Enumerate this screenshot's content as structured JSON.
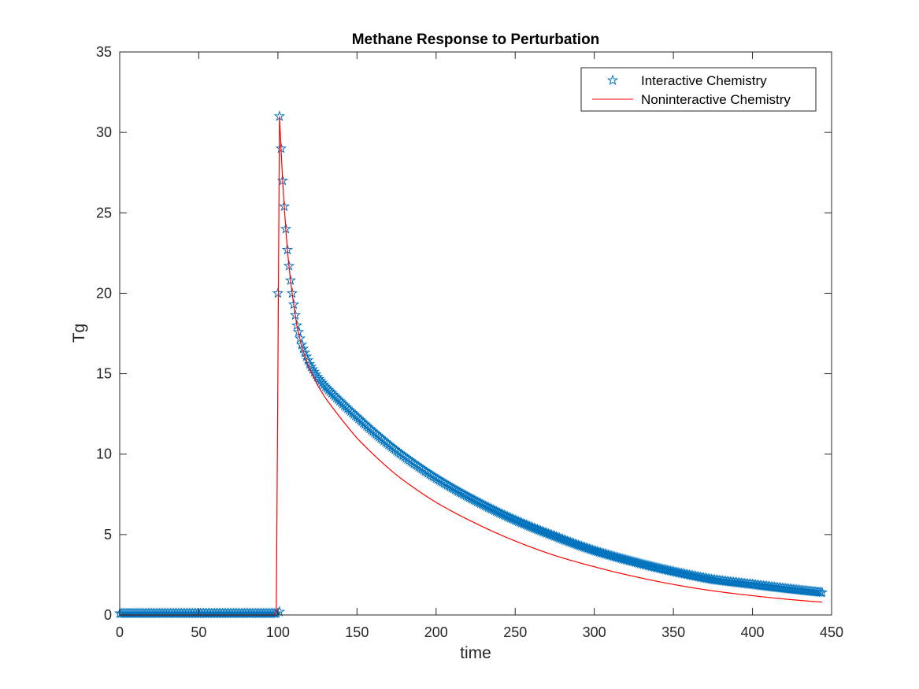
{
  "chart_data": {
    "type": "line",
    "title": "Methane Response to Perturbation",
    "xlabel": "time",
    "ylabel": "Tg",
    "xlim": [
      0,
      450
    ],
    "ylim": [
      0,
      35
    ],
    "xticks": [
      0,
      50,
      100,
      150,
      200,
      250,
      300,
      350,
      400,
      450
    ],
    "yticks": [
      0,
      5,
      10,
      15,
      20,
      25,
      30,
      35
    ],
    "grid": false,
    "legend_position": "top-right",
    "series": [
      {
        "name": "Interactive Chemistry",
        "style": "markers",
        "marker": "pentagram",
        "color": "#0072BD",
        "segments": [
          {
            "x_start": 0,
            "x_end": 99,
            "step": 1,
            "y": 0.1
          },
          {
            "x": 100,
            "y": 20.0
          },
          {
            "x": 101,
            "y": 31.0
          },
          {
            "x": 101,
            "y": 0.2
          }
        ],
        "decay_points": [
          [
            102,
            29.0
          ],
          [
            103,
            27.0
          ],
          [
            104,
            25.4
          ],
          [
            105,
            24.0
          ],
          [
            106,
            22.7
          ],
          [
            107,
            21.7
          ],
          [
            108,
            20.8
          ],
          [
            109,
            20.0
          ],
          [
            110,
            19.3
          ],
          [
            112,
            18.0
          ],
          [
            115,
            16.8
          ],
          [
            120,
            15.6
          ],
          [
            125,
            14.8
          ],
          [
            130,
            14.2
          ],
          [
            150,
            12.3
          ],
          [
            175,
            10.2
          ],
          [
            200,
            8.5
          ],
          [
            225,
            7.1
          ],
          [
            250,
            5.9
          ],
          [
            275,
            4.9
          ],
          [
            300,
            4.0
          ],
          [
            325,
            3.3
          ],
          [
            350,
            2.7
          ],
          [
            375,
            2.2
          ],
          [
            400,
            1.9
          ],
          [
            425,
            1.6
          ],
          [
            444,
            1.4
          ]
        ]
      },
      {
        "name": "Noninteractive Chemistry",
        "style": "line",
        "color": "#FF0000",
        "points": [
          [
            0,
            0
          ],
          [
            98,
            0
          ],
          [
            99,
            0.3
          ],
          [
            100,
            15.0
          ],
          [
            101,
            31.0
          ],
          [
            102,
            29.0
          ],
          [
            103,
            27.0
          ],
          [
            104,
            25.4
          ],
          [
            105,
            24.0
          ],
          [
            106,
            22.7
          ],
          [
            107,
            21.7
          ],
          [
            108,
            20.8
          ],
          [
            109,
            20.0
          ],
          [
            110,
            19.3
          ],
          [
            112,
            18.0
          ],
          [
            115,
            16.7
          ],
          [
            120,
            15.3
          ],
          [
            125,
            14.3
          ],
          [
            130,
            13.5
          ],
          [
            140,
            12.2
          ],
          [
            150,
            11.0
          ],
          [
            175,
            8.7
          ],
          [
            200,
            7.0
          ],
          [
            225,
            5.7
          ],
          [
            250,
            4.6
          ],
          [
            275,
            3.7
          ],
          [
            300,
            3.0
          ],
          [
            325,
            2.4
          ],
          [
            350,
            1.9
          ],
          [
            375,
            1.5
          ],
          [
            400,
            1.2
          ],
          [
            425,
            0.95
          ],
          [
            444,
            0.8
          ]
        ]
      }
    ]
  }
}
